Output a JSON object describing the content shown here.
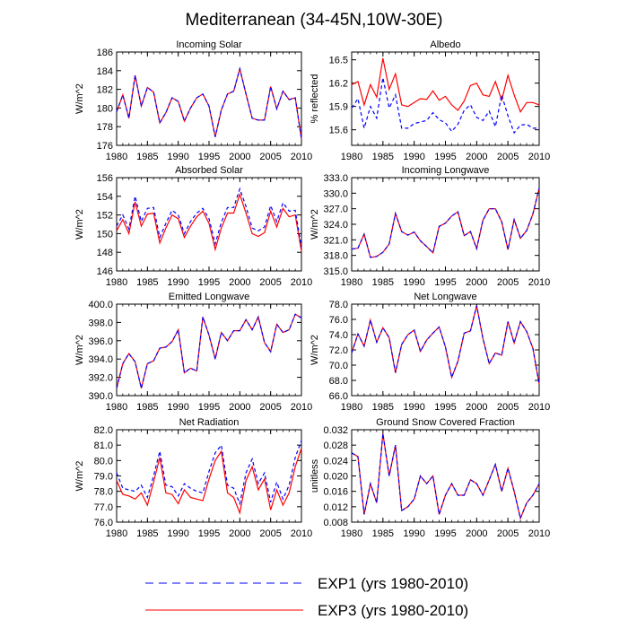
{
  "title": "Mediterranean (34-45N,10W-30E)",
  "legend": [
    {
      "key": "exp1",
      "label": "EXP1 (yrs 1980-2010)",
      "color": "#0000ff",
      "dashed": true
    },
    {
      "key": "exp3",
      "label": "EXP3 (yrs 1980-2010)",
      "color": "#ff0000",
      "dashed": false
    }
  ],
  "chart_data": [
    {
      "type": "line",
      "title": "Incoming Solar",
      "ylabel": "W/m^2",
      "xlim": [
        1980,
        2010
      ],
      "xticks": [
        "1980",
        "1985",
        "1990",
        "1995",
        "2000",
        "2005",
        "2010"
      ],
      "ylim": [
        176,
        186
      ],
      "yticks": [
        "176",
        "178",
        "180",
        "182",
        "184",
        "186"
      ],
      "x": [
        1980,
        1981,
        1982,
        1983,
        1984,
        1985,
        1986,
        1987,
        1988,
        1989,
        1990,
        1991,
        1992,
        1993,
        1994,
        1995,
        1996,
        1997,
        1998,
        1999,
        2000,
        2001,
        2002,
        2003,
        2004,
        2005,
        2006,
        2007,
        2008,
        2009,
        2010
      ],
      "series": [
        {
          "name": "EXP1",
          "values": [
            179.6,
            181.4,
            178.9,
            183.5,
            180.2,
            182.2,
            181.7,
            178.4,
            179.5,
            181.1,
            180.7,
            178.6,
            180.0,
            181.1,
            181.5,
            180.2,
            176.9,
            179.8,
            181.5,
            181.8,
            184.2,
            181.5,
            178.9,
            178.7,
            178.7,
            182.3,
            179.9,
            181.8,
            180.9,
            181.1,
            176.7
          ]
        },
        {
          "name": "EXP3",
          "values": [
            179.6,
            181.4,
            178.9,
            183.5,
            180.2,
            182.2,
            181.7,
            178.4,
            179.5,
            181.1,
            180.7,
            178.6,
            180.0,
            181.1,
            181.5,
            180.2,
            176.9,
            179.8,
            181.5,
            181.8,
            184.2,
            181.5,
            178.9,
            178.7,
            178.7,
            182.3,
            179.9,
            181.8,
            180.9,
            181.1,
            176.7
          ]
        }
      ]
    },
    {
      "type": "line",
      "title": "Albedo",
      "ylabel": "% reflected",
      "xlim": [
        1980,
        2010
      ],
      "xticks": [
        "1980",
        "1985",
        "1990",
        "1995",
        "2000",
        "2005",
        "2010"
      ],
      "ylim": [
        15.4,
        16.6
      ],
      "yticks": [
        "15.6",
        "15.9",
        "16.2",
        "16.5"
      ],
      "x": [
        1980,
        1981,
        1982,
        1983,
        1984,
        1985,
        1986,
        1987,
        1988,
        1989,
        1990,
        1991,
        1992,
        1993,
        1994,
        1995,
        1996,
        1997,
        1998,
        1999,
        2000,
        2001,
        2002,
        2003,
        2004,
        2005,
        2006,
        2007,
        2008,
        2009,
        2010
      ],
      "series": [
        {
          "name": "EXP1",
          "values": [
            15.88,
            16.0,
            15.62,
            15.9,
            15.75,
            16.27,
            15.88,
            16.05,
            15.62,
            15.62,
            15.68,
            15.7,
            15.72,
            15.82,
            15.73,
            15.69,
            15.58,
            15.67,
            15.85,
            15.92,
            15.76,
            15.72,
            15.84,
            15.64,
            16.05,
            15.78,
            15.56,
            15.66,
            15.67,
            15.62,
            15.62
          ]
        },
        {
          "name": "EXP3",
          "values": [
            16.18,
            16.22,
            15.92,
            16.18,
            16.02,
            16.52,
            16.12,
            16.32,
            15.92,
            15.9,
            15.95,
            16.0,
            15.99,
            16.1,
            15.98,
            16.03,
            15.92,
            15.85,
            15.97,
            16.17,
            16.2,
            16.05,
            16.03,
            16.22,
            15.98,
            16.3,
            16.05,
            15.83,
            15.95,
            15.95,
            15.92
          ]
        }
      ]
    },
    {
      "type": "line",
      "title": "Absorbed Solar",
      "ylabel": "W/m^2",
      "xlim": [
        1980,
        2010
      ],
      "xticks": [
        "1980",
        "1985",
        "1990",
        "1995",
        "2000",
        "2005",
        "2010"
      ],
      "ylim": [
        146,
        156
      ],
      "yticks": [
        "146",
        "148",
        "150",
        "152",
        "154",
        "156"
      ],
      "x": [
        1980,
        1981,
        1982,
        1983,
        1984,
        1985,
        1986,
        1987,
        1988,
        1989,
        1990,
        1991,
        1992,
        1993,
        1994,
        1995,
        1996,
        1997,
        1998,
        1999,
        2000,
        2001,
        2002,
        2003,
        2004,
        2005,
        2006,
        2007,
        2008,
        2009,
        2010
      ],
      "series": [
        {
          "name": "EXP1",
          "values": [
            150.8,
            152.0,
            150.5,
            154.0,
            151.3,
            152.7,
            152.8,
            149.6,
            151.1,
            152.5,
            152.0,
            150.0,
            151.3,
            152.2,
            152.7,
            151.6,
            148.9,
            151.2,
            152.8,
            152.8,
            154.8,
            152.9,
            150.6,
            150.3,
            150.7,
            153.0,
            151.3,
            153.3,
            152.4,
            152.5,
            148.5
          ]
        },
        {
          "name": "EXP3",
          "values": [
            150.3,
            151.5,
            150.0,
            153.4,
            150.8,
            152.1,
            152.2,
            149.0,
            150.6,
            152.0,
            151.6,
            149.6,
            150.8,
            151.8,
            152.4,
            151.1,
            148.3,
            150.6,
            152.2,
            152.2,
            154.2,
            152.2,
            150.0,
            149.7,
            150.1,
            152.4,
            150.7,
            152.7,
            151.8,
            152.0,
            148.1
          ]
        }
      ]
    },
    {
      "type": "line",
      "title": "Incoming Longwave",
      "ylabel": "W/m^2",
      "xlim": [
        1980,
        2010
      ],
      "xticks": [
        "1980",
        "1985",
        "1990",
        "1995",
        "2000",
        "2005",
        "2010"
      ],
      "ylim": [
        315,
        333
      ],
      "yticks": [
        "315.0",
        "318.0",
        "321.0",
        "324.0",
        "327.0",
        "330.0",
        "333.0"
      ],
      "x": [
        1980,
        1981,
        1982,
        1983,
        1984,
        1985,
        1986,
        1987,
        1988,
        1989,
        1990,
        1991,
        1992,
        1993,
        1994,
        1995,
        1996,
        1997,
        1998,
        1999,
        2000,
        2001,
        2002,
        2003,
        2004,
        2005,
        2006,
        2007,
        2008,
        2009,
        2010
      ],
      "series": [
        {
          "name": "EXP1",
          "values": [
            319.2,
            319.4,
            322.1,
            317.6,
            317.8,
            318.6,
            320.2,
            326.1,
            322.6,
            321.9,
            322.5,
            320.8,
            319.7,
            318.5,
            323.6,
            324.2,
            325.6,
            326.4,
            321.8,
            322.6,
            319.3,
            324.8,
            327.0,
            327.0,
            324.5,
            319.1,
            324.9,
            321.3,
            322.8,
            326.0,
            331.0
          ]
        },
        {
          "name": "EXP3",
          "values": [
            319.2,
            319.4,
            322.1,
            317.6,
            317.8,
            318.6,
            320.2,
            326.1,
            322.6,
            321.9,
            322.5,
            320.8,
            319.7,
            318.5,
            323.6,
            324.2,
            325.6,
            326.4,
            321.8,
            322.6,
            319.3,
            324.8,
            327.0,
            327.0,
            324.5,
            319.1,
            324.9,
            321.3,
            322.8,
            326.0,
            331.0
          ]
        }
      ]
    },
    {
      "type": "line",
      "title": "Emitted Longwave",
      "ylabel": "W/m^2",
      "xlim": [
        1980,
        2010
      ],
      "xticks": [
        "1980",
        "1985",
        "1990",
        "1995",
        "2000",
        "2005",
        "2010"
      ],
      "ylim": [
        390,
        400
      ],
      "yticks": [
        "390.0",
        "392.0",
        "394.0",
        "396.0",
        "398.0",
        "400.0"
      ],
      "x": [
        1980,
        1981,
        1982,
        1983,
        1984,
        1985,
        1986,
        1987,
        1988,
        1989,
        1990,
        1991,
        1992,
        1993,
        1994,
        1995,
        1996,
        1997,
        1998,
        1999,
        2000,
        2001,
        2002,
        2003,
        2004,
        2005,
        2006,
        2007,
        2008,
        2009,
        2010
      ],
      "series": [
        {
          "name": "EXP1",
          "values": [
            390.8,
            393.5,
            394.6,
            393.7,
            390.8,
            393.5,
            393.8,
            395.2,
            395.3,
            395.9,
            397.2,
            392.5,
            393.0,
            392.7,
            398.6,
            396.6,
            394.0,
            396.9,
            396.0,
            397.1,
            397.1,
            398.3,
            397.2,
            398.6,
            395.8,
            394.8,
            397.8,
            396.9,
            397.2,
            398.9,
            398.5
          ]
        },
        {
          "name": "EXP3",
          "values": [
            390.8,
            393.5,
            394.6,
            393.7,
            390.8,
            393.5,
            393.8,
            395.2,
            395.3,
            395.9,
            397.2,
            392.5,
            393.0,
            392.7,
            398.6,
            396.6,
            394.0,
            396.9,
            396.0,
            397.1,
            397.1,
            398.3,
            397.2,
            398.6,
            395.8,
            394.8,
            397.8,
            396.9,
            397.2,
            398.9,
            398.5
          ]
        }
      ]
    },
    {
      "type": "line",
      "title": "Net Longwave",
      "ylabel": "W/m^2",
      "xlim": [
        1980,
        2010
      ],
      "xticks": [
        "1980",
        "1985",
        "1990",
        "1995",
        "2000",
        "2005",
        "2010"
      ],
      "ylim": [
        66,
        78
      ],
      "yticks": [
        "66.0",
        "68.0",
        "70.0",
        "72.0",
        "74.0",
        "76.0",
        "78.0"
      ],
      "x": [
        1980,
        1981,
        1982,
        1983,
        1984,
        1985,
        1986,
        1987,
        1988,
        1989,
        1990,
        1991,
        1992,
        1993,
        1994,
        1995,
        1996,
        1997,
        1998,
        1999,
        2000,
        2001,
        2002,
        2003,
        2004,
        2005,
        2006,
        2007,
        2008,
        2009,
        2010
      ],
      "series": [
        {
          "name": "EXP1",
          "values": [
            71.6,
            74.1,
            72.5,
            75.9,
            73.0,
            74.9,
            73.6,
            69.0,
            72.7,
            74.0,
            74.6,
            71.8,
            73.3,
            74.2,
            75.0,
            72.4,
            68.4,
            70.5,
            74.2,
            74.5,
            77.8,
            73.5,
            70.2,
            71.6,
            71.3,
            75.7,
            72.9,
            75.7,
            74.4,
            72.2,
            67.5
          ]
        },
        {
          "name": "EXP3",
          "values": [
            71.6,
            74.1,
            72.5,
            75.9,
            73.0,
            74.9,
            73.6,
            69.0,
            72.7,
            74.0,
            74.6,
            71.8,
            73.3,
            74.2,
            75.0,
            72.4,
            68.4,
            70.5,
            74.2,
            74.5,
            77.8,
            73.5,
            70.2,
            71.6,
            71.3,
            75.7,
            72.9,
            75.7,
            74.4,
            72.2,
            67.5
          ]
        }
      ]
    },
    {
      "type": "line",
      "title": "Net Radiation",
      "ylabel": "W/m^2",
      "xlim": [
        1980,
        2010
      ],
      "xticks": [
        "1980",
        "1985",
        "1990",
        "1995",
        "2000",
        "2005",
        "2010"
      ],
      "ylim": [
        76,
        82
      ],
      "yticks": [
        "76.0",
        "77.0",
        "78.0",
        "79.0",
        "80.0",
        "81.0",
        "82.0"
      ],
      "x": [
        1980,
        1981,
        1982,
        1983,
        1984,
        1985,
        1986,
        1987,
        1988,
        1989,
        1990,
        1991,
        1992,
        1993,
        1994,
        1995,
        1996,
        1997,
        1998,
        1999,
        2000,
        2001,
        2002,
        2003,
        2004,
        2005,
        2006,
        2007,
        2008,
        2009,
        2010
      ],
      "series": [
        {
          "name": "EXP1",
          "values": [
            79.2,
            78.2,
            78.1,
            78.0,
            78.4,
            77.6,
            79.0,
            80.6,
            78.4,
            78.3,
            77.7,
            78.5,
            78.2,
            78.0,
            77.9,
            79.3,
            80.5,
            81.0,
            78.4,
            78.2,
            77.2,
            79.2,
            80.1,
            78.5,
            79.2,
            77.3,
            78.6,
            77.5,
            78.4,
            80.2,
            81.3
          ]
        },
        {
          "name": "EXP3",
          "values": [
            78.7,
            77.8,
            77.7,
            77.5,
            77.9,
            77.1,
            78.6,
            80.2,
            77.9,
            77.8,
            77.2,
            78.1,
            77.6,
            77.5,
            77.4,
            78.8,
            80.0,
            80.6,
            77.9,
            77.6,
            76.6,
            78.7,
            79.6,
            78.1,
            78.8,
            76.8,
            78.1,
            77.1,
            77.9,
            79.6,
            80.8
          ]
        }
      ]
    },
    {
      "type": "line",
      "title": "Ground Snow Covered Fraction",
      "ylabel": "unitless",
      "xlim": [
        1980,
        2010
      ],
      "xticks": [
        "1980",
        "1985",
        "1990",
        "1995",
        "2000",
        "2005",
        "2010"
      ],
      "ylim": [
        0.008,
        0.032
      ],
      "yticks": [
        "0.008",
        "0.012",
        "0.016",
        "0.020",
        "0.024",
        "0.028",
        "0.032"
      ],
      "x": [
        1980,
        1981,
        1982,
        1983,
        1984,
        1985,
        1986,
        1987,
        1988,
        1989,
        1990,
        1991,
        1992,
        1993,
        1994,
        1995,
        1996,
        1997,
        1998,
        1999,
        2000,
        2001,
        2002,
        2003,
        2004,
        2005,
        2006,
        2007,
        2008,
        2009,
        2010
      ],
      "series": [
        {
          "name": "EXP1",
          "values": [
            0.026,
            0.025,
            0.01,
            0.018,
            0.013,
            0.031,
            0.02,
            0.028,
            0.011,
            0.012,
            0.014,
            0.02,
            0.018,
            0.02,
            0.01,
            0.015,
            0.018,
            0.015,
            0.015,
            0.019,
            0.018,
            0.015,
            0.019,
            0.023,
            0.016,
            0.022,
            0.016,
            0.009,
            0.013,
            0.015,
            0.018
          ]
        },
        {
          "name": "EXP3",
          "values": [
            0.026,
            0.025,
            0.01,
            0.018,
            0.013,
            0.031,
            0.02,
            0.028,
            0.011,
            0.012,
            0.014,
            0.02,
            0.018,
            0.02,
            0.01,
            0.015,
            0.018,
            0.015,
            0.015,
            0.019,
            0.018,
            0.015,
            0.019,
            0.023,
            0.016,
            0.022,
            0.016,
            0.009,
            0.013,
            0.015,
            0.018
          ]
        }
      ]
    }
  ]
}
